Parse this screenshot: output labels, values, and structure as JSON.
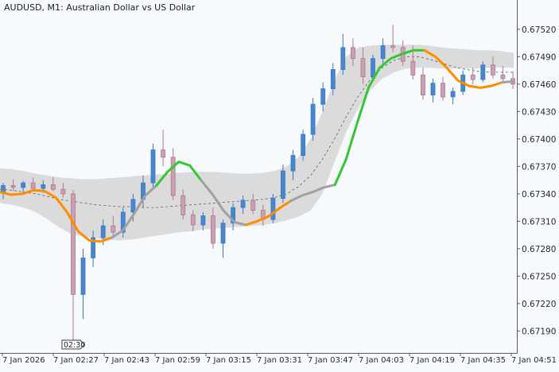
{
  "chart_data": {
    "type": "candlestick",
    "title": "AUDUSD, M1:  Australian Dollar vs US Dollar",
    "ylim": [
      0.67166,
      0.67552
    ],
    "y_ticks": [
      "0.67520",
      "0.67490",
      "0.67460",
      "0.67430",
      "0.67400",
      "0.67370",
      "0.67340",
      "0.67310",
      "0.67280",
      "0.67250",
      "0.67220",
      "0.67190"
    ],
    "x_labels": [
      "7 Jan 2026",
      "7 Jan 02:27",
      "7 Jan 02:43",
      "7 Jan 02:59",
      "7 Jan 03:15",
      "7 Jan 03:31",
      "7 Jan 03:47",
      "7 Jan 04:03",
      "7 Jan 04:19",
      "7 Jan 04:35",
      "7 Jan 04:51"
    ],
    "time_marker": "02:30",
    "colors": {
      "bull": "#3a78c3",
      "bear": "#b07890",
      "band": "#d9d9d9",
      "midline": "#606060",
      "orange": "#ff8c00",
      "green": "#33c833",
      "gray": "#a0a0a0",
      "axis": "#5a5a5a",
      "background": "#f6fafc"
    },
    "band": {
      "upper": [
        0.67368,
        0.67367,
        0.67365,
        0.67362,
        0.6736,
        0.67358,
        0.67357,
        0.67356,
        0.67356,
        0.67357,
        0.67358,
        0.67359,
        0.6736,
        0.67361,
        0.67362,
        0.67363,
        0.67364,
        0.67364,
        0.67364,
        0.67363,
        0.67362,
        0.67362,
        0.67363,
        0.67365,
        0.6737,
        0.6738,
        0.674,
        0.6743,
        0.67465,
        0.6749,
        0.675,
        0.67502,
        0.67503,
        0.67503,
        0.67503,
        0.67503,
        0.67502,
        0.675,
        0.67499,
        0.67498,
        0.67497,
        0.67497,
        0.67496,
        0.67494
      ],
      "mid": [
        0.67345,
        0.67344,
        0.67342,
        0.6734,
        0.67337,
        0.67334,
        0.67332,
        0.6733,
        0.67328,
        0.67327,
        0.67326,
        0.67326,
        0.67325,
        0.67325,
        0.67326,
        0.67327,
        0.67328,
        0.67329,
        0.6733,
        0.67331,
        0.67332,
        0.67333,
        0.67334,
        0.67336,
        0.6734,
        0.67348,
        0.6736,
        0.67378,
        0.674,
        0.67425,
        0.67447,
        0.67465,
        0.67478,
        0.67486,
        0.6749,
        0.6749,
        0.67487,
        0.67483,
        0.67479,
        0.67476,
        0.67474,
        0.67473,
        0.67473,
        0.67473
      ],
      "lower": [
        0.6733,
        0.67328,
        0.67325,
        0.6732,
        0.67312,
        0.67303,
        0.67296,
        0.67293,
        0.67291,
        0.6729,
        0.67289,
        0.6729,
        0.67292,
        0.67294,
        0.67296,
        0.67298,
        0.67299,
        0.67301,
        0.67302,
        0.67303,
        0.67304,
        0.67305,
        0.67306,
        0.67308,
        0.67311,
        0.67315,
        0.67322,
        0.6734,
        0.67375,
        0.67408,
        0.67434,
        0.67453,
        0.67466,
        0.67473,
        0.67477,
        0.67478,
        0.67478,
        0.67477,
        0.67477,
        0.67477,
        0.67477,
        0.67478,
        0.67478,
        0.67478
      ]
    },
    "candles": [
      [
        0.67342,
        0.67352,
        0.67334,
        0.67349
      ],
      [
        0.67349,
        0.67356,
        0.67343,
        0.67347
      ],
      [
        0.67347,
        0.67354,
        0.6734,
        0.67352
      ],
      [
        0.67352,
        0.67358,
        0.67344,
        0.67346
      ],
      [
        0.67346,
        0.67355,
        0.67341,
        0.6735
      ],
      [
        0.6735,
        0.67358,
        0.67343,
        0.67345
      ],
      [
        0.67345,
        0.67352,
        0.67336,
        0.6734
      ],
      [
        0.6734,
        0.67344,
        0.6718,
        0.6723
      ],
      [
        0.6723,
        0.6728,
        0.67203,
        0.6727
      ],
      [
        0.6727,
        0.673,
        0.6726,
        0.67292
      ],
      [
        0.67292,
        0.67312,
        0.67284,
        0.67305
      ],
      [
        0.67305,
        0.67316,
        0.67292,
        0.67298
      ],
      [
        0.67298,
        0.67325,
        0.67292,
        0.6732
      ],
      [
        0.6732,
        0.6734,
        0.6731,
        0.67334
      ],
      [
        0.67334,
        0.6736,
        0.67325,
        0.67352
      ],
      [
        0.67352,
        0.67395,
        0.67345,
        0.67388
      ],
      [
        0.67388,
        0.6741,
        0.6737,
        0.6738
      ],
      [
        0.6738,
        0.6739,
        0.67333,
        0.67338
      ],
      [
        0.67338,
        0.67345,
        0.67312,
        0.67317
      ],
      [
        0.67317,
        0.67322,
        0.67299,
        0.67306
      ],
      [
        0.67306,
        0.6732,
        0.673,
        0.67316
      ],
      [
        0.67316,
        0.67325,
        0.6728,
        0.67286
      ],
      [
        0.67286,
        0.67312,
        0.6727,
        0.67308
      ],
      [
        0.67308,
        0.6733,
        0.673,
        0.67325
      ],
      [
        0.67325,
        0.67338,
        0.67318,
        0.67333
      ],
      [
        0.67333,
        0.6734,
        0.67318,
        0.67322
      ],
      [
        0.67322,
        0.67328,
        0.67305,
        0.67312
      ],
      [
        0.67312,
        0.6734,
        0.67308,
        0.67335
      ],
      [
        0.67335,
        0.67372,
        0.6733,
        0.67365
      ],
      [
        0.67365,
        0.67388,
        0.67355,
        0.67382
      ],
      [
        0.67382,
        0.6741,
        0.67376,
        0.67405
      ],
      [
        0.67405,
        0.67445,
        0.67398,
        0.67438
      ],
      [
        0.67438,
        0.67462,
        0.6743,
        0.67455
      ],
      [
        0.67455,
        0.67483,
        0.67448,
        0.67476
      ],
      [
        0.67476,
        0.67515,
        0.6747,
        0.675
      ],
      [
        0.675,
        0.6751,
        0.6748,
        0.67488
      ],
      [
        0.67488,
        0.675,
        0.6746,
        0.67468
      ],
      [
        0.67468,
        0.67492,
        0.67463,
        0.67488
      ],
      [
        0.67488,
        0.6751,
        0.67482,
        0.67502
      ],
      [
        0.67502,
        0.67525,
        0.67495,
        0.675
      ],
      [
        0.675,
        0.67508,
        0.6748,
        0.67485
      ],
      [
        0.67485,
        0.67502,
        0.67465,
        0.6747
      ],
      [
        0.6747,
        0.67478,
        0.67443,
        0.67448
      ],
      [
        0.67448,
        0.67466,
        0.6744,
        0.67461
      ],
      [
        0.67461,
        0.67468,
        0.67442,
        0.67446
      ],
      [
        0.67446,
        0.67456,
        0.67438,
        0.67452
      ],
      [
        0.67452,
        0.67475,
        0.67448,
        0.6747
      ],
      [
        0.6747,
        0.67478,
        0.6746,
        0.67465
      ],
      [
        0.67465,
        0.67485,
        0.67462,
        0.67481
      ],
      [
        0.67481,
        0.6749,
        0.67466,
        0.6747
      ],
      [
        0.6747,
        0.6748,
        0.67462,
        0.67466
      ],
      [
        0.67466,
        0.67474,
        0.67455,
        0.6746
      ]
    ],
    "colored_line": [
      {
        "color": "orange",
        "points": [
          0.67342,
          0.67339,
          0.6734,
          0.67344,
          0.67343,
          0.67336,
          0.6732,
          0.67299,
          0.67289,
          0.67288,
          0.67292
        ]
      },
      {
        "color": "gray",
        "points": [
          0.67292,
          0.673,
          0.67318,
          0.67338,
          0.67349
        ]
      },
      {
        "color": "green",
        "points": [
          0.67349,
          0.67364,
          0.67375,
          0.67371,
          0.67355
        ]
      },
      {
        "color": "gray",
        "points": [
          0.67355,
          0.6734,
          0.67322,
          0.67309,
          0.67306
        ]
      },
      {
        "color": "orange",
        "points": [
          0.67306,
          0.6731,
          0.67315,
          0.67324,
          0.67332
        ]
      },
      {
        "color": "gray",
        "points": [
          0.67332,
          0.67338,
          0.67342,
          0.67347,
          0.6735
        ]
      },
      {
        "color": "green",
        "points": [
          0.6735,
          0.67378,
          0.67418,
          0.67456,
          0.67478,
          0.67488,
          0.67493,
          0.67497,
          0.67497
        ]
      },
      {
        "color": "orange",
        "points": [
          0.67497,
          0.6749,
          0.67478,
          0.67464,
          0.67458,
          0.67456,
          0.67458,
          0.67462
        ]
      },
      {
        "color": "gray",
        "points": [
          0.67462,
          0.67463
        ]
      }
    ]
  }
}
